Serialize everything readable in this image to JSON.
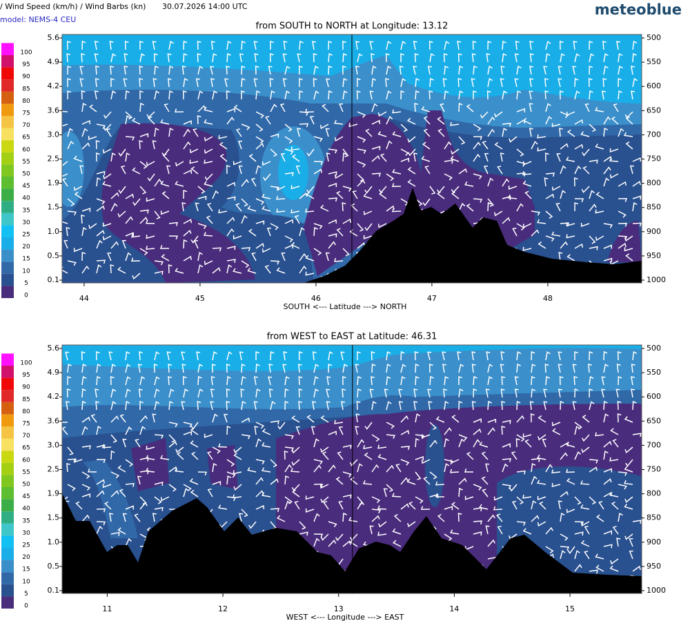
{
  "header": {
    "title": "/ Wind Speed (km/h) / Wind Barbs (kn)",
    "datetime": "30.07.2026  14:00 UTC",
    "brand": "meteoblue",
    "model": "model: NEMS-4 CEU"
  },
  "colorbar": {
    "labels": [
      0,
      5,
      10,
      15,
      20,
      25,
      30,
      35,
      40,
      45,
      50,
      55,
      60,
      65,
      70,
      75,
      80,
      85,
      90,
      95,
      100
    ],
    "colors": [
      "#4a2c7c",
      "#29508f",
      "#3068a8",
      "#3b8fc8",
      "#19aee8",
      "#12c0f4",
      "#3ec6c8",
      "#2fae84",
      "#3cae48",
      "#5cbe30",
      "#80c820",
      "#a4d014",
      "#cad812",
      "#f8e060",
      "#f6c444",
      "#f09a10",
      "#d46010",
      "#e02828",
      "#f00808",
      "#d0106a",
      "#ff10ff"
    ]
  },
  "chart_data": [
    {
      "type": "contour",
      "title": "from SOUTH to NORTH at Longitude:  13.12",
      "xlabel": "SOUTH <---   Latitude   ---> NORTH",
      "xlim": [
        43.81,
        48.81
      ],
      "xticks": [
        44,
        45,
        46,
        47,
        48
      ],
      "crosshair": 46.31,
      "y2lim": [
        500,
        1000
      ],
      "y2ticks": [
        500,
        550,
        600,
        650,
        700,
        750,
        800,
        850,
        900,
        950,
        1000
      ],
      "yticks": [
        5.6,
        4.9,
        4.2,
        3.6,
        {
          "value": 3,
          "label": "3.0"
        },
        2.5,
        1.9,
        1.5,
        {
          "value": 1,
          "label": "1.0"
        },
        0.5,
        0.1
      ]
    },
    {
      "type": "contour",
      "title": "from WEST to EAST at Latitude:  46.31",
      "xlabel": "WEST <---   Longitude   ---> EAST",
      "xlim": [
        10.61,
        15.62
      ],
      "xticks": [
        11,
        12,
        13,
        14,
        15
      ],
      "crosshair": 13.12,
      "y2lim": [
        500,
        1000
      ],
      "y2ticks": [
        500,
        550,
        600,
        650,
        700,
        750,
        800,
        850,
        900,
        950,
        1000
      ],
      "yticks": [
        5.6,
        4.9,
        4.2,
        3.6,
        {
          "value": 3,
          "label": "3.0"
        },
        2.5,
        1.9,
        1.5,
        {
          "value": 1,
          "label": "1.0"
        },
        0.5,
        0.1
      ]
    }
  ]
}
